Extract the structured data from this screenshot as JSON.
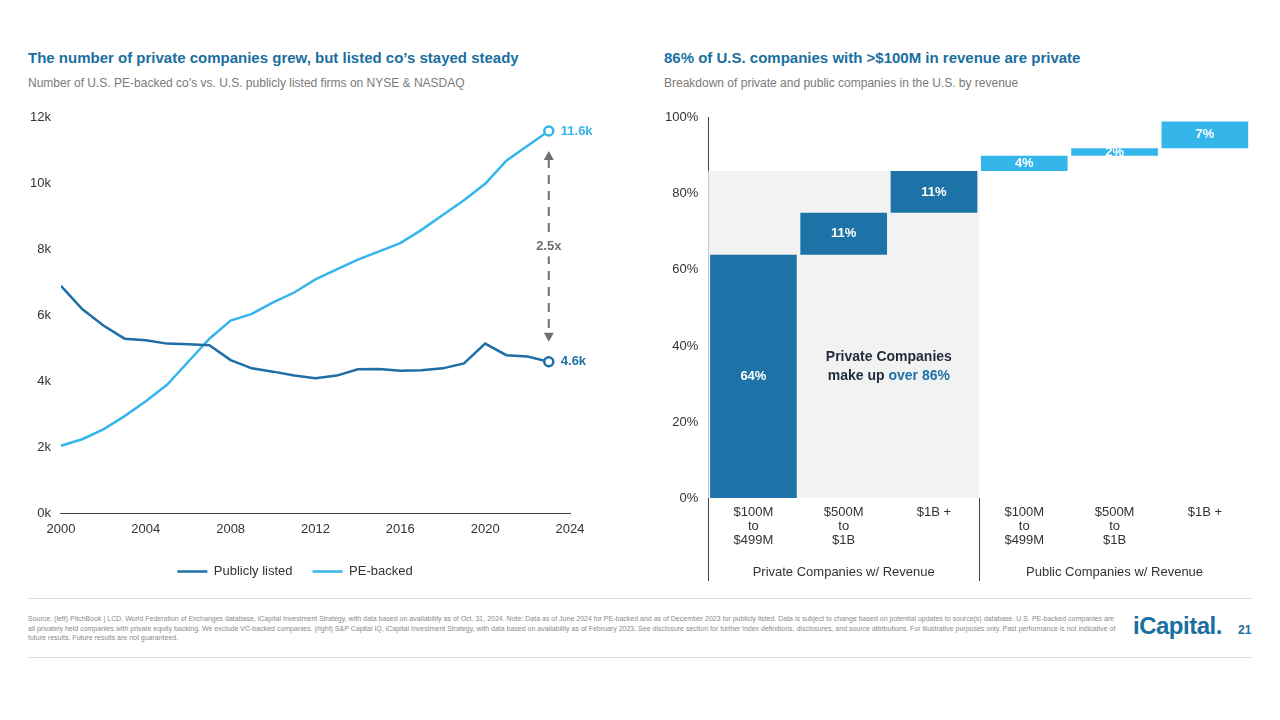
{
  "chart_data": [
    {
      "type": "line",
      "title": "The number of private companies grew, but listed co’s stayed steady",
      "subtitle": "Number of U.S. PE-backed co’s vs. U.S. publicly listed firms on NYSE & NASDAQ",
      "x": [
        2000,
        2001,
        2002,
        2003,
        2004,
        2005,
        2006,
        2007,
        2008,
        2009,
        2010,
        2011,
        2012,
        2013,
        2014,
        2015,
        2016,
        2017,
        2018,
        2019,
        2020,
        2021,
        2022,
        2023
      ],
      "series": [
        {
          "name": "Publicly listed",
          "color": "#1d6fa5",
          "end_label": "4.6k",
          "values": [
            6900,
            6200,
            5700,
            5300,
            5250,
            5150,
            5130,
            5100,
            4650,
            4400,
            4300,
            4180,
            4100,
            4180,
            4370,
            4380,
            4330,
            4340,
            4400,
            4550,
            5150,
            4800,
            4760,
            4600
          ]
        },
        {
          "name": "PE-backed",
          "color": "#35b6ea",
          "end_label": "11.6k",
          "values": [
            2050,
            2250,
            2550,
            2950,
            3400,
            3900,
            4600,
            5300,
            5850,
            6050,
            6400,
            6700,
            7100,
            7400,
            7700,
            7950,
            8200,
            8600,
            9050,
            9500,
            10000,
            10700,
            11150,
            11600
          ]
        }
      ],
      "xlim": [
        2000,
        2024
      ],
      "xticks": [
        2000,
        2004,
        2008,
        2012,
        2016,
        2020,
        2024
      ],
      "ylim": [
        0,
        12000
      ],
      "yticks": [
        {
          "value": 0,
          "label": "0k"
        },
        {
          "value": 2000,
          "label": "2k"
        },
        {
          "value": 4000,
          "label": "4k"
        },
        {
          "value": 6000,
          "label": "6k"
        },
        {
          "value": 8000,
          "label": "8k"
        },
        {
          "value": 10000,
          "label": "10k"
        },
        {
          "value": 12000,
          "label": "12k"
        }
      ],
      "grid": false,
      "legend": "bottom",
      "annotations": [
        {
          "text": "2.5x",
          "x": 2023,
          "y_from": 4600,
          "y_to": 11600
        }
      ]
    },
    {
      "type": "waterfall",
      "title": "86% of U.S. companies with >$100M in revenue are private",
      "subtitle": "Breakdown of private and public companies in the U.S. by revenue",
      "groups": [
        {
          "label": "Private Companies w/ Revenue",
          "color": "#1d72a8",
          "categories": [
            [
              "$100M",
              "to",
              "$499M"
            ],
            [
              "$500M",
              "to",
              "$1B"
            ],
            [
              "$1B +"
            ]
          ],
          "values": [
            64,
            11,
            11
          ],
          "value_labels": [
            "64%",
            "11%",
            "11%"
          ]
        },
        {
          "label": "Public Companies w/ Revenue",
          "color": "#35b6ea",
          "categories": [
            [
              "$100M",
              "to",
              "$499M"
            ],
            [
              "$500M",
              "to",
              "$1B"
            ],
            [
              "$1B +"
            ]
          ],
          "values": [
            4,
            2,
            7
          ],
          "value_labels": [
            "4%",
            "2%",
            "7%"
          ]
        }
      ],
      "ylim": [
        0,
        100
      ],
      "yticks": [
        {
          "value": 0,
          "label": "0%"
        },
        {
          "value": 20,
          "label": "20%"
        },
        {
          "value": 40,
          "label": "40%"
        },
        {
          "value": 60,
          "label": "60%"
        },
        {
          "value": 80,
          "label": "80%"
        },
        {
          "value": 100,
          "label": "100%"
        }
      ],
      "grid": false,
      "data_labels": true,
      "annotations": [
        {
          "lines": [
            [
              {
                "text": "Private Companies"
              }
            ],
            [
              {
                "text": "make up "
              },
              {
                "text": "over 86%",
                "color": "#1d72a8"
              }
            ]
          ]
        }
      ]
    }
  ],
  "footer": {
    "source_note": "Source: (left) PitchBook | LCD, World Federation of Exchanges database, iCapital Investment Strategy, with data based on availability as of Oct. 31, 2024. Note: Data as of June 2024 for PE-backed and as of December 2023 for publicly listed. Data is subject to change based on potential updates to source(s) database. U.S. PE-backed companies are all privately held companies with private equity backing. We exclude VC-backed companies. (right) S&P Capital IQ, iCapital Investment Strategy, with data based on availability as of February 2023. See disclosure section for further index definitions, disclosures, and source attributions. For illustrative purposes only. Past performance is not indicative of future results. Future results are not guaranteed.",
    "logo": "iCapital.",
    "page_number": "21"
  }
}
